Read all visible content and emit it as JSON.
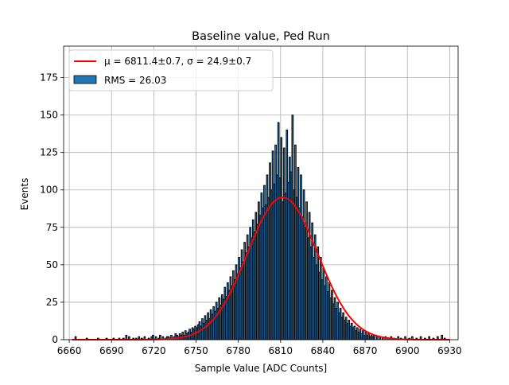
{
  "chart_data": {
    "type": "bar",
    "title": "Baseline value, Ped Run",
    "xlabel": "Sample Value [ADC Counts]",
    "ylabel": "Events",
    "xlim": [
      6656,
      6936
    ],
    "ylim": [
      0,
      196
    ],
    "xticks": [
      6660,
      6690,
      6720,
      6750,
      6780,
      6810,
      6840,
      6870,
      6900,
      6930
    ],
    "yticks": [
      0,
      25,
      50,
      75,
      100,
      125,
      150,
      175
    ],
    "grid": true,
    "legend_position": "top-left",
    "bin_width": 1,
    "legend": [
      {
        "name": "μ = 6811.4±0.7, σ = 24.9±0.7",
        "kind": "line",
        "color": "#ff0000"
      },
      {
        "name": "RMS = 26.03",
        "kind": "bar",
        "color": "#1f77b4"
      }
    ],
    "fit": {
      "type": "gaussian",
      "mu": 6811.4,
      "sigma": 24.9,
      "amplitude": 95,
      "color": "#ff0000"
    },
    "histogram": {
      "name": "RMS = 26.03",
      "color": "#1f77b4",
      "edge_color": "#000000",
      "bins": [
        [
          6664,
          2
        ],
        [
          6672,
          1
        ],
        [
          6680,
          1
        ],
        [
          6686,
          1
        ],
        [
          6691,
          1
        ],
        [
          6695,
          1
        ],
        [
          6698,
          1
        ],
        [
          6700,
          3
        ],
        [
          6702,
          2
        ],
        [
          6705,
          1
        ],
        [
          6707,
          1
        ],
        [
          6709,
          2
        ],
        [
          6711,
          1
        ],
        [
          6713,
          2
        ],
        [
          6716,
          1
        ],
        [
          6718,
          2
        ],
        [
          6719,
          3
        ],
        [
          6721,
          2
        ],
        [
          6723,
          1
        ],
        [
          6724,
          3
        ],
        [
          6726,
          2
        ],
        [
          6728,
          1
        ],
        [
          6729,
          2
        ],
        [
          6730,
          2
        ],
        [
          6731,
          1
        ],
        [
          6732,
          3
        ],
        [
          6733,
          1
        ],
        [
          6734,
          2
        ],
        [
          6735,
          4
        ],
        [
          6736,
          3
        ],
        [
          6737,
          2
        ],
        [
          6738,
          4
        ],
        [
          6739,
          3
        ],
        [
          6740,
          5
        ],
        [
          6741,
          3
        ],
        [
          6742,
          6
        ],
        [
          6743,
          4
        ],
        [
          6744,
          5
        ],
        [
          6745,
          7
        ],
        [
          6746,
          5
        ],
        [
          6747,
          8
        ],
        [
          6748,
          7
        ],
        [
          6749,
          9
        ],
        [
          6750,
          8
        ],
        [
          6751,
          10
        ],
        [
          6752,
          12
        ],
        [
          6753,
          9
        ],
        [
          6754,
          14
        ],
        [
          6755,
          11
        ],
        [
          6756,
          16
        ],
        [
          6757,
          13
        ],
        [
          6758,
          18
        ],
        [
          6759,
          14
        ],
        [
          6760,
          20
        ],
        [
          6761,
          17
        ],
        [
          6762,
          22
        ],
        [
          6763,
          19
        ],
        [
          6764,
          25
        ],
        [
          6765,
          21
        ],
        [
          6766,
          28
        ],
        [
          6767,
          23
        ],
        [
          6768,
          30
        ],
        [
          6769,
          27
        ],
        [
          6770,
          35
        ],
        [
          6771,
          29
        ],
        [
          6772,
          38
        ],
        [
          6773,
          33
        ],
        [
          6774,
          42
        ],
        [
          6775,
          36
        ],
        [
          6776,
          46
        ],
        [
          6777,
          40
        ],
        [
          6778,
          50
        ],
        [
          6779,
          44
        ],
        [
          6780,
          55
        ],
        [
          6781,
          48
        ],
        [
          6782,
          60
        ],
        [
          6783,
          52
        ],
        [
          6784,
          65
        ],
        [
          6785,
          58
        ],
        [
          6786,
          70
        ],
        [
          6787,
          62
        ],
        [
          6788,
          75
        ],
        [
          6789,
          68
        ],
        [
          6790,
          80
        ],
        [
          6791,
          72
        ],
        [
          6792,
          85
        ],
        [
          6793,
          77
        ],
        [
          6794,
          92
        ],
        [
          6795,
          83
        ],
        [
          6796,
          98
        ],
        [
          6797,
          88
        ],
        [
          6798,
          103
        ],
        [
          6799,
          90
        ],
        [
          6800,
          110
        ],
        [
          6801,
          95
        ],
        [
          6802,
          118
        ],
        [
          6803,
          100
        ],
        [
          6804,
          126
        ],
        [
          6805,
          104
        ],
        [
          6806,
          130
        ],
        [
          6807,
          110
        ],
        [
          6808,
          145
        ],
        [
          6809,
          108
        ],
        [
          6810,
          135
        ],
        [
          6811,
          92
        ],
        [
          6812,
          128
        ],
        [
          6813,
          98
        ],
        [
          6814,
          140
        ],
        [
          6815,
          105
        ],
        [
          6816,
          122
        ],
        [
          6817,
          112
        ],
        [
          6818,
          150
        ],
        [
          6819,
          100
        ],
        [
          6820,
          130
        ],
        [
          6821,
          95
        ],
        [
          6822,
          115
        ],
        [
          6823,
          88
        ],
        [
          6824,
          110
        ],
        [
          6825,
          82
        ],
        [
          6826,
          100
        ],
        [
          6827,
          75
        ],
        [
          6828,
          92
        ],
        [
          6829,
          68
        ],
        [
          6830,
          85
        ],
        [
          6831,
          62
        ],
        [
          6832,
          78
        ],
        [
          6833,
          55
        ],
        [
          6834,
          70
        ],
        [
          6835,
          50
        ],
        [
          6836,
          62
        ],
        [
          6837,
          45
        ],
        [
          6838,
          55
        ],
        [
          6839,
          40
        ],
        [
          6840,
          48
        ],
        [
          6841,
          36
        ],
        [
          6842,
          42
        ],
        [
          6843,
          32
        ],
        [
          6844,
          38
        ],
        [
          6845,
          28
        ],
        [
          6846,
          33
        ],
        [
          6847,
          24
        ],
        [
          6848,
          28
        ],
        [
          6849,
          21
        ],
        [
          6850,
          25
        ],
        [
          6851,
          18
        ],
        [
          6852,
          21
        ],
        [
          6853,
          15
        ],
        [
          6854,
          18
        ],
        [
          6855,
          13
        ],
        [
          6856,
          15
        ],
        [
          6857,
          11
        ],
        [
          6858,
          13
        ],
        [
          6859,
          9
        ],
        [
          6860,
          11
        ],
        [
          6861,
          8
        ],
        [
          6862,
          9
        ],
        [
          6863,
          6
        ],
        [
          6864,
          8
        ],
        [
          6865,
          5
        ],
        [
          6866,
          7
        ],
        [
          6867,
          4
        ],
        [
          6868,
          6
        ],
        [
          6869,
          3
        ],
        [
          6870,
          5
        ],
        [
          6871,
          3
        ],
        [
          6872,
          4
        ],
        [
          6873,
          2
        ],
        [
          6874,
          3
        ],
        [
          6875,
          2
        ],
        [
          6876,
          3
        ],
        [
          6878,
          2
        ],
        [
          6880,
          2
        ],
        [
          6882,
          1
        ],
        [
          6884,
          2
        ],
        [
          6886,
          1
        ],
        [
          6888,
          2
        ],
        [
          6890,
          1
        ],
        [
          6893,
          2
        ],
        [
          6895,
          1
        ],
        [
          6898,
          2
        ],
        [
          6901,
          1
        ],
        [
          6903,
          2
        ],
        [
          6906,
          1
        ],
        [
          6909,
          2
        ],
        [
          6912,
          1
        ],
        [
          6915,
          2
        ],
        [
          6918,
          1
        ],
        [
          6921,
          2
        ],
        [
          6924,
          3
        ],
        [
          6926,
          1
        ]
      ]
    }
  }
}
